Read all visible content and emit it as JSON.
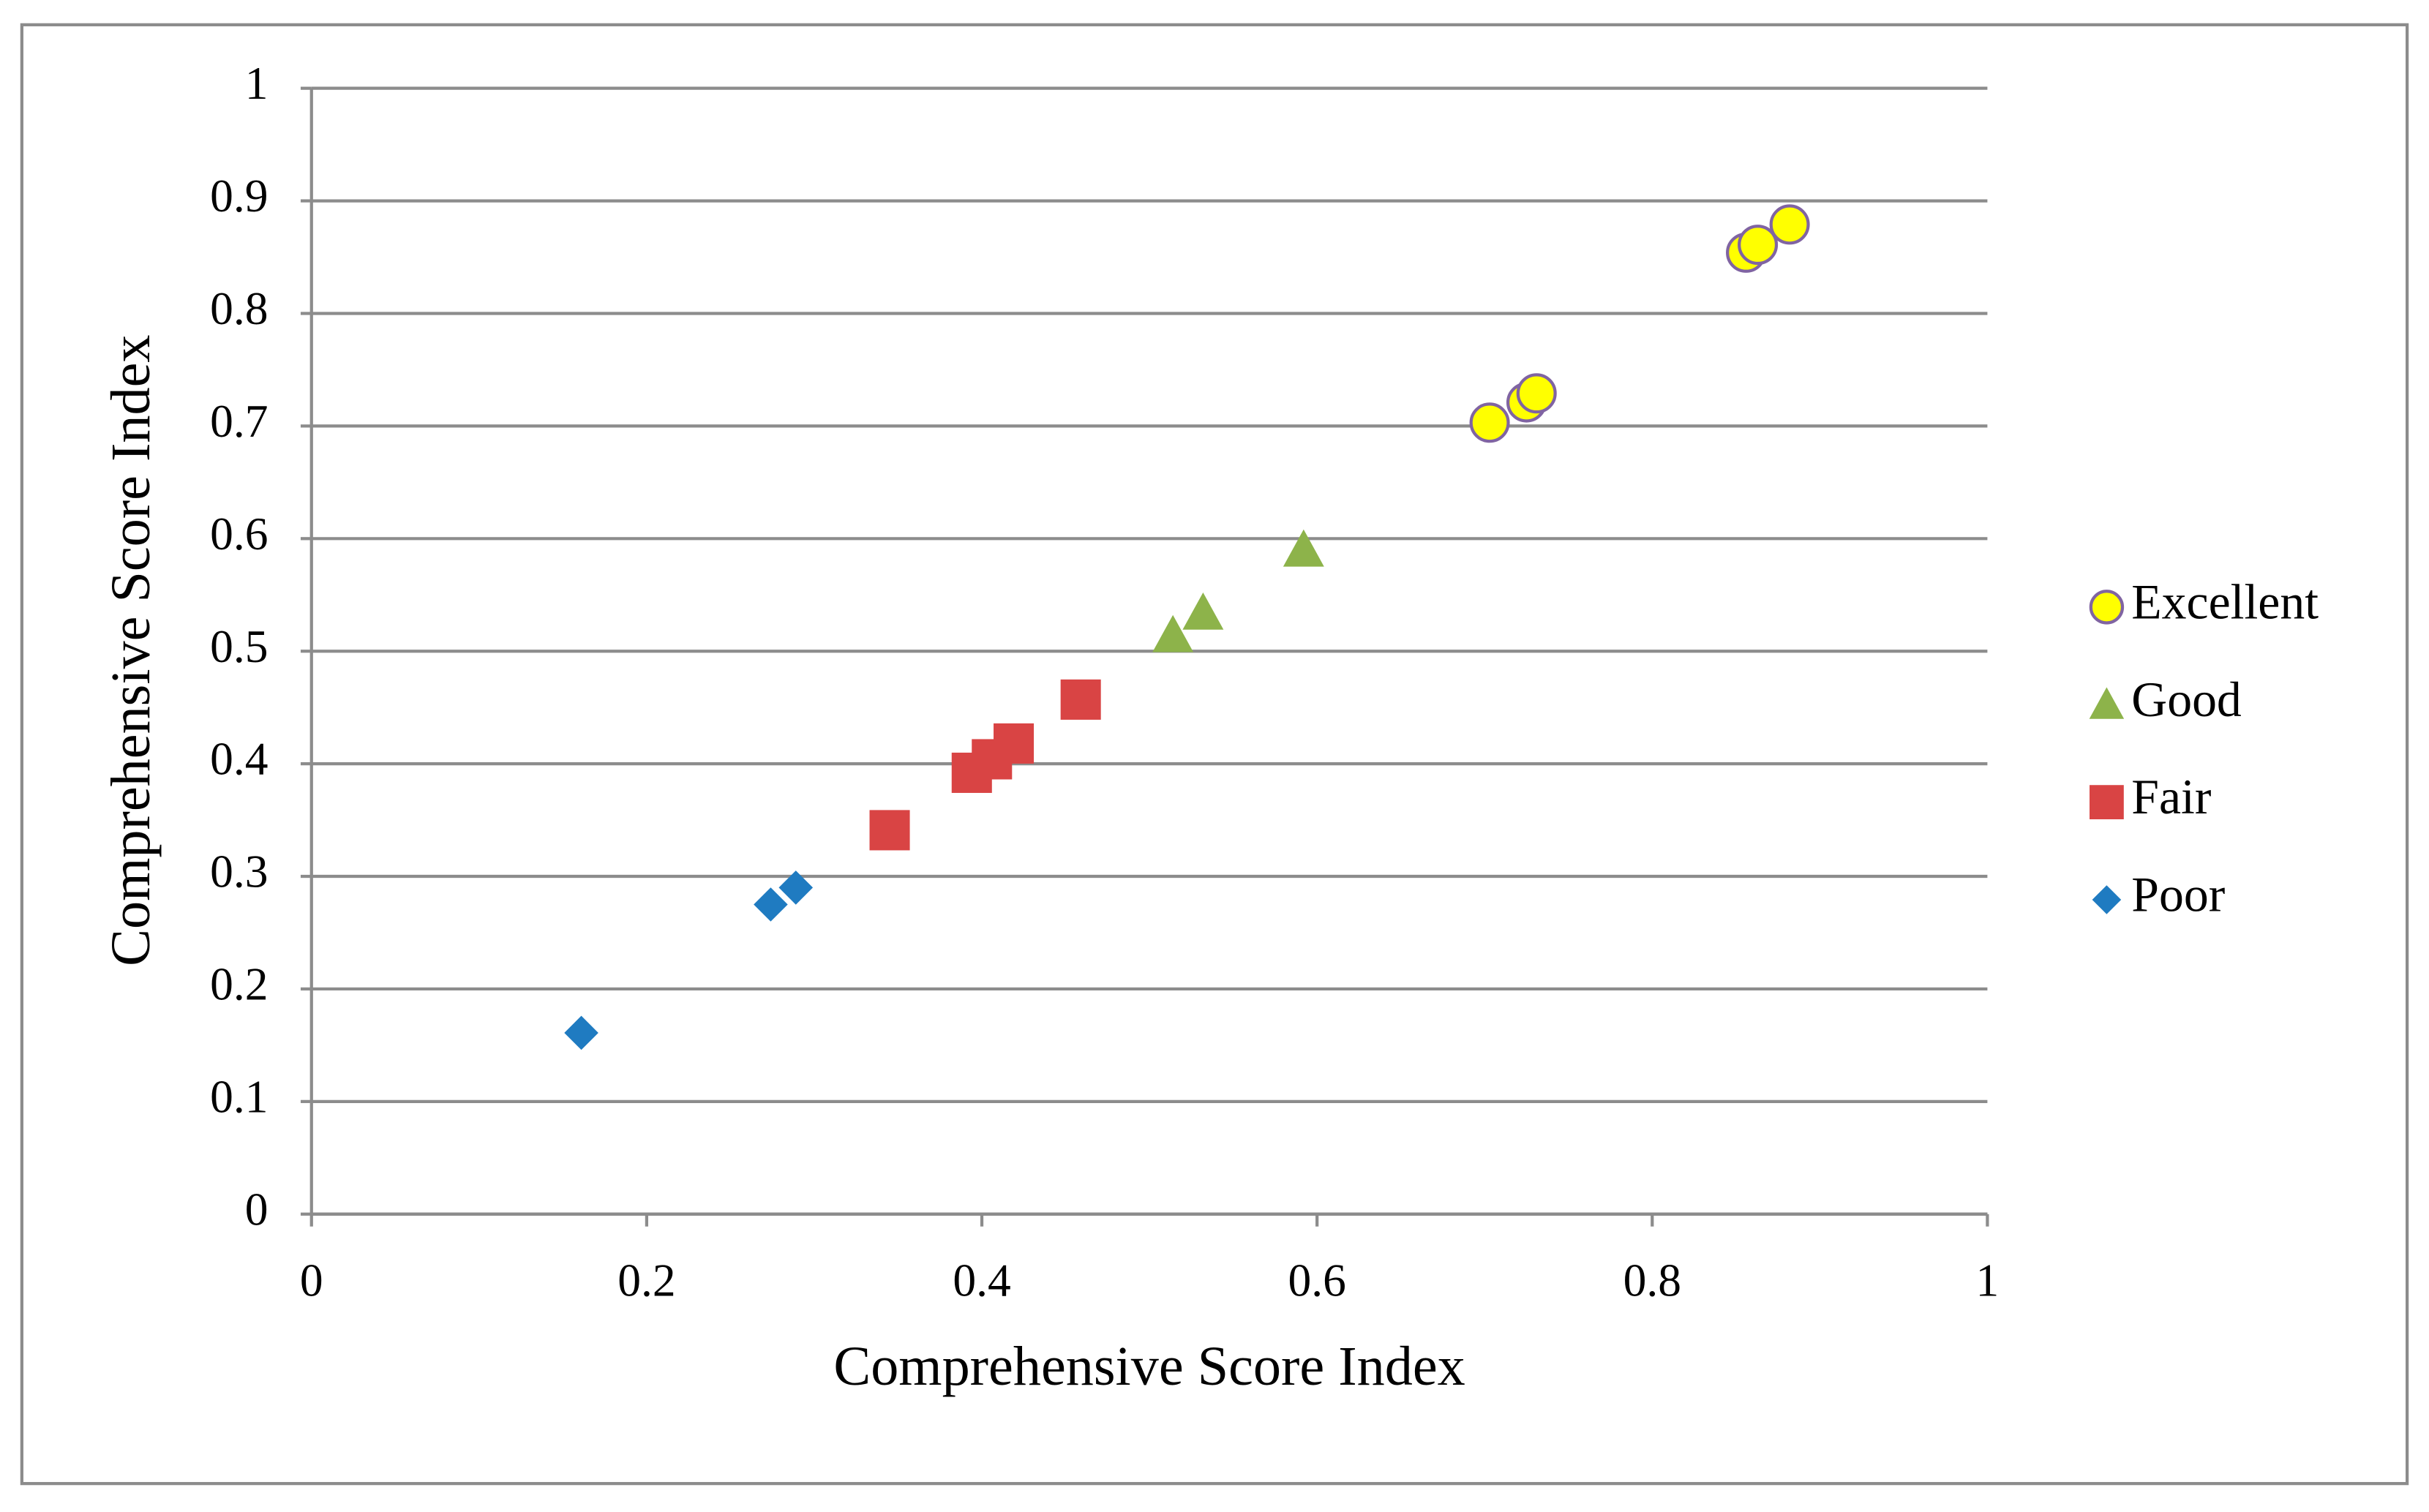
{
  "chart_data": {
    "type": "scatter",
    "xlabel": "Comprehensive Score Index",
    "ylabel": "Comprehensive Score Index",
    "xlim": [
      0,
      1
    ],
    "ylim": [
      0,
      1
    ],
    "xticks": [
      0,
      0.2,
      0.4,
      0.6,
      0.8,
      1
    ],
    "yticks": [
      0,
      0.1,
      0.2,
      0.3,
      0.4,
      0.5,
      0.6,
      0.7,
      0.8,
      0.9,
      1
    ],
    "grid": "y",
    "legend": "right",
    "series": [
      {
        "name": "Excellent",
        "color": "#ffff00",
        "edgecolor": "#8064a2",
        "marker": "circle",
        "x": [
          0.703,
          0.725,
          0.731,
          0.856,
          0.863,
          0.882
        ],
        "y": [
          0.703,
          0.721,
          0.729,
          0.854,
          0.861,
          0.879
        ]
      },
      {
        "name": "Good",
        "color": "#8db34a",
        "marker": "triangle",
        "x": [
          0.514,
          0.532,
          0.592
        ],
        "y": [
          0.514,
          0.534,
          0.59
        ]
      },
      {
        "name": "Fair",
        "color": "#d94444",
        "marker": "square",
        "x": [
          0.345,
          0.394,
          0.406,
          0.419,
          0.459
        ],
        "y": [
          0.341,
          0.392,
          0.404,
          0.418,
          0.457
        ]
      },
      {
        "name": "Poor",
        "color": "#1f7bc1",
        "marker": "diamond",
        "x": [
          0.161,
          0.274,
          0.289
        ],
        "y": [
          0.161,
          0.275,
          0.29
        ]
      }
    ]
  }
}
